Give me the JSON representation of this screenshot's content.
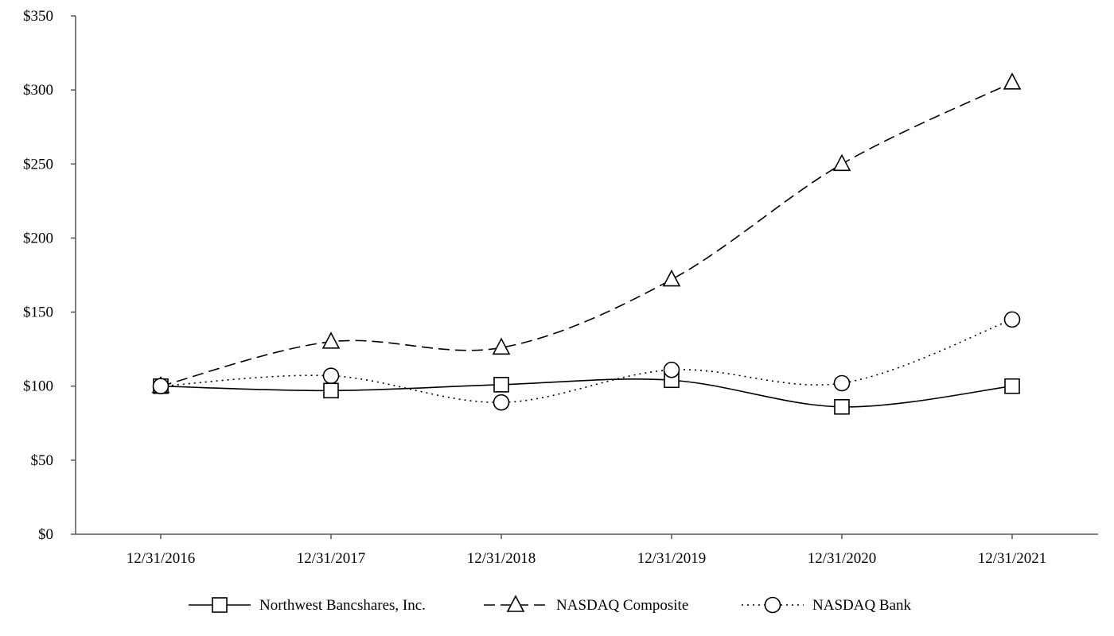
{
  "chart_data": {
    "type": "line",
    "title": "",
    "xlabel": "",
    "ylabel": "",
    "categories": [
      "12/31/2016",
      "12/31/2017",
      "12/31/2018",
      "12/31/2019",
      "12/31/2020",
      "12/31/2021"
    ],
    "y_ticks": [
      "$0",
      "$50",
      "$100",
      "$150",
      "$200",
      "$250",
      "$300",
      "$350"
    ],
    "ylim": [
      0,
      350
    ],
    "grid": false,
    "legend_position": "bottom",
    "series": [
      {
        "name": "Northwest Bancshares, Inc.",
        "values": [
          100,
          97,
          101,
          104,
          86,
          100
        ],
        "line_style": "solid",
        "marker": "square",
        "color": "#000000"
      },
      {
        "name": "NASDAQ Composite",
        "values": [
          100,
          130,
          126,
          172,
          250,
          305
        ],
        "line_style": "dashed",
        "marker": "triangle",
        "color": "#000000"
      },
      {
        "name": "NASDAQ Bank",
        "values": [
          100,
          107,
          89,
          111,
          102,
          145
        ],
        "line_style": "dotted",
        "marker": "circle",
        "color": "#000000"
      }
    ]
  }
}
